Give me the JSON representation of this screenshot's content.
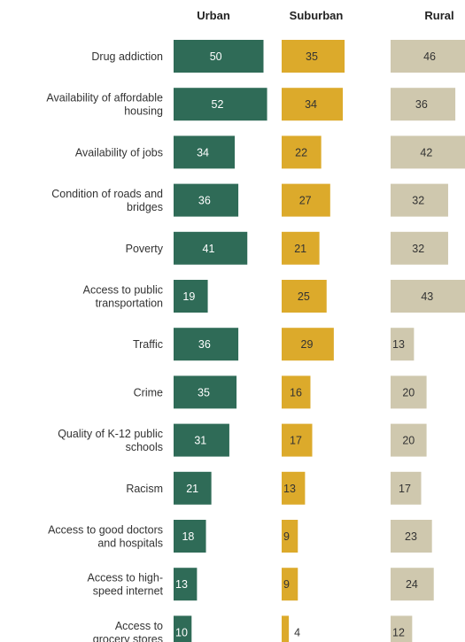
{
  "chart_data": {
    "type": "bar",
    "title": "",
    "xlabel": "",
    "ylabel": "",
    "categories": [
      [
        "Drug addiction"
      ],
      [
        "Availability of affordable",
        "housing"
      ],
      [
        "Availability of jobs"
      ],
      [
        "Condition of roads and",
        "bridges"
      ],
      [
        "Poverty"
      ],
      [
        "Access to public",
        "transportation"
      ],
      [
        "Traffic"
      ],
      [
        "Crime"
      ],
      [
        "Quality of K-12 public",
        "schools"
      ],
      [
        "Racism"
      ],
      [
        "Access to good doctors",
        "and hospitals"
      ],
      [
        "Access to high-",
        "speed internet"
      ],
      [
        "Access to",
        "grocery stores"
      ]
    ],
    "series": [
      {
        "name": "Urban",
        "color": "#2f6b57",
        "label_color": "#ffffff",
        "values": [
          50,
          52,
          34,
          36,
          41,
          19,
          36,
          35,
          31,
          21,
          18,
          13,
          10
        ]
      },
      {
        "name": "Suburban",
        "color": "#dcaa2b",
        "label_color": "#333333",
        "values": [
          35,
          34,
          22,
          27,
          21,
          25,
          29,
          16,
          17,
          13,
          9,
          9,
          4
        ]
      },
      {
        "name": "Rural",
        "color": "#cfc8ae",
        "label_color": "#333333",
        "values": [
          46,
          36,
          42,
          32,
          32,
          43,
          13,
          20,
          20,
          17,
          23,
          24,
          12
        ]
      }
    ]
  }
}
